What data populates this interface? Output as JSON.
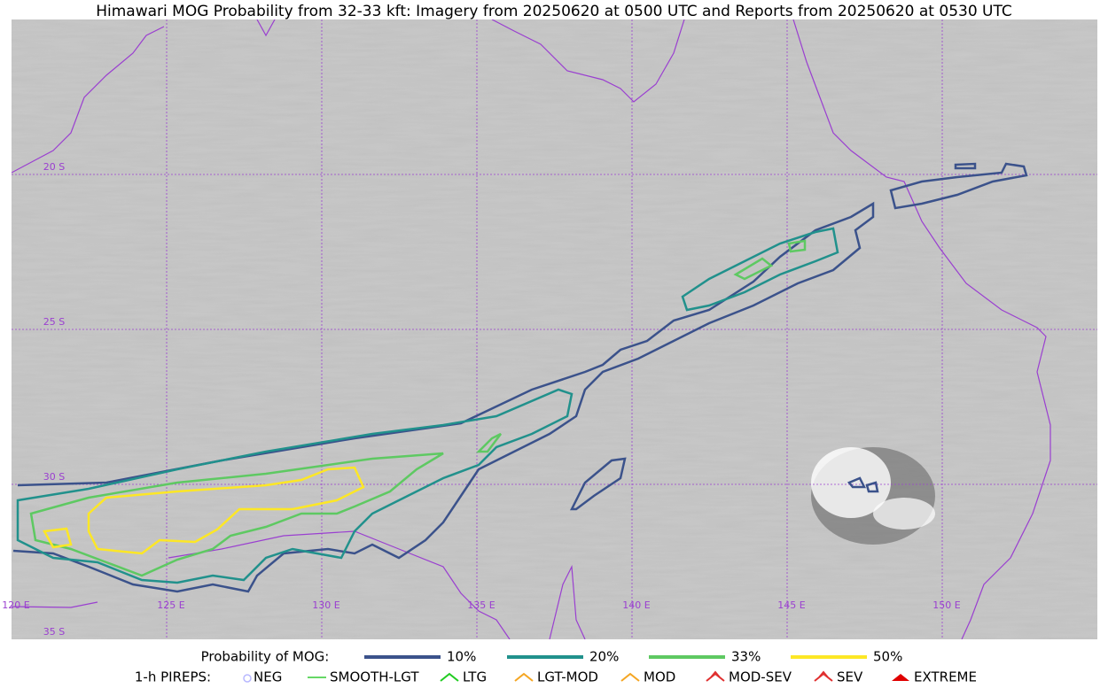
{
  "header": {
    "title": "Himawari MOG Probability from 32-33 kft: Imagery from 20250620 at 0500 UTC and Reports from 20250620 at 0530 UTC"
  },
  "map": {
    "lat_labels": [
      "20 S",
      "25 S",
      "30 S",
      "35 S"
    ],
    "lon_labels": [
      "120 E",
      "125 E",
      "130 E",
      "135 E",
      "140 E",
      "145 E",
      "150 E"
    ]
  },
  "legend": {
    "title": "Probability of MOG:",
    "levels": [
      {
        "label": "10%",
        "color": "#3b528b"
      },
      {
        "label": "20%",
        "color": "#21918c"
      },
      {
        "label": "33%",
        "color": "#5ec962"
      },
      {
        "label": "50%",
        "color": "#fde725"
      }
    ]
  },
  "pireps": {
    "title": "1-h PIREPS:",
    "items": [
      "NEG",
      "SMOOTH-LGT",
      "LTG",
      "LGT-MOD",
      "MOD",
      "MOD-SEV",
      "SEV",
      "EXTREME"
    ]
  }
}
